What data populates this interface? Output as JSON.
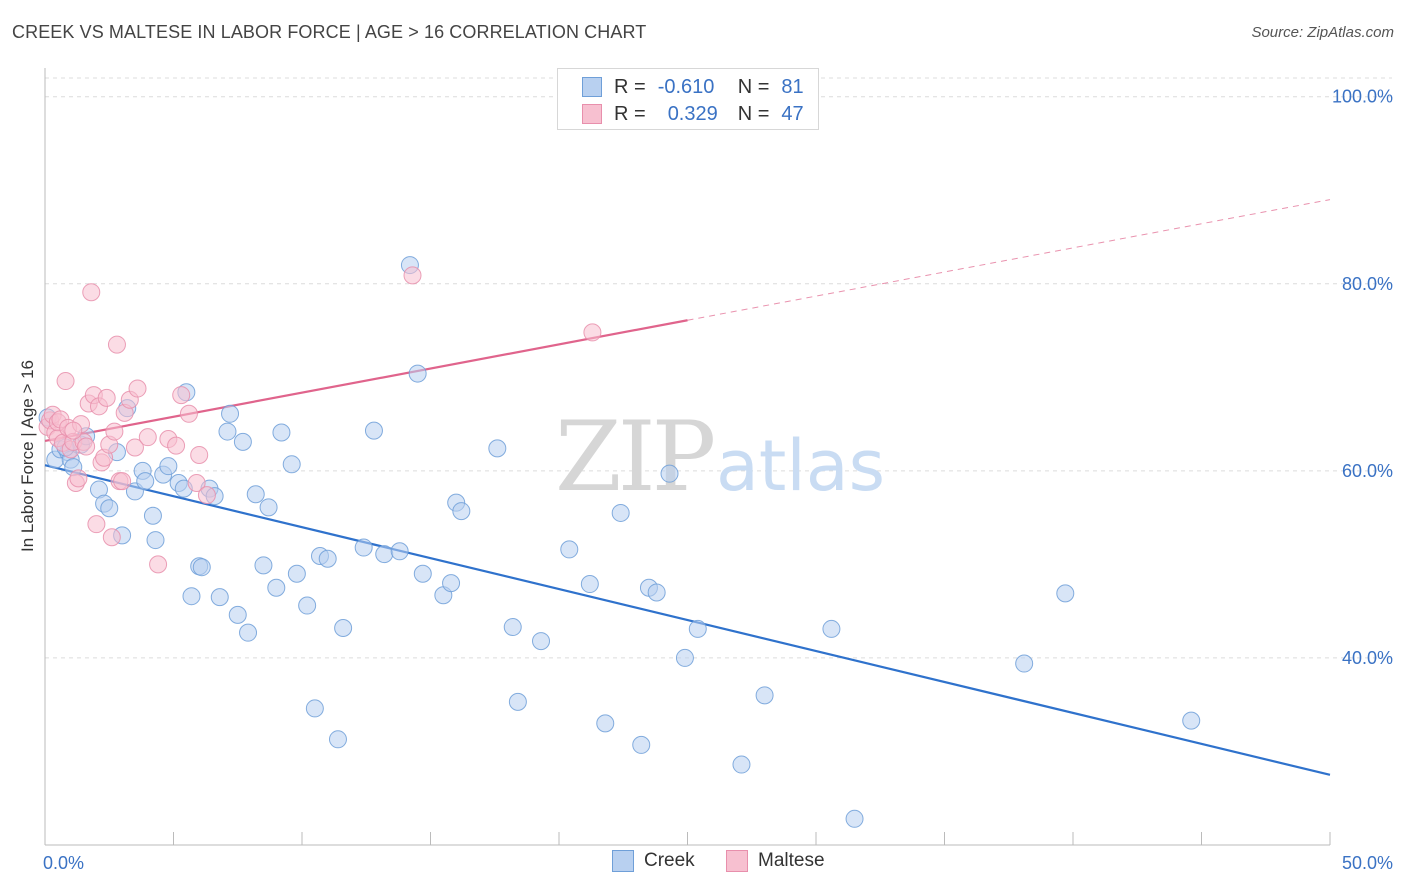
{
  "header": {
    "title": "CREEK VS MALTESE IN LABOR FORCE | AGE > 16 CORRELATION CHART",
    "source": "Source: ZipAtlas.com"
  },
  "legend": {
    "rows": [
      {
        "r_label": "R =",
        "r_value": "-0.610",
        "n_label": "N =",
        "n_value": "81"
      },
      {
        "r_label": "R =",
        "r_value": "0.329",
        "n_label": "N =",
        "n_value": "47"
      }
    ],
    "bottom": [
      {
        "label": "Creek"
      },
      {
        "label": "Maltese"
      }
    ]
  },
  "watermark": {
    "zip": "ZIP",
    "atlas": "atlas"
  },
  "colors": {
    "creek_fill": "#b8d0f0",
    "creek_stroke": "#6f9fd8",
    "creek_line": "#2f72cc",
    "maltese_fill": "#f7c0d0",
    "maltese_stroke": "#e88fac",
    "maltese_line": "#e0648c",
    "tick_label": "#3a72c4",
    "grid": "#dcdcdc"
  },
  "chart_data": {
    "type": "scatter",
    "title": "CREEK VS MALTESE IN LABOR FORCE | AGE > 16 CORRELATION CHART",
    "xlabel": "",
    "ylabel": "In Labor Force | Age > 16",
    "xlim": [
      0,
      50
    ],
    "ylim": [
      20,
      102
    ],
    "x_tick_labels": [
      "0.0%",
      "50.0%"
    ],
    "y_ticks": [
      100,
      80,
      60,
      40
    ],
    "y_tick_labels": [
      "100.0%",
      "80.0%",
      "60.0%",
      "40.0%"
    ],
    "grid": true,
    "legend_position": "top-center",
    "series": [
      {
        "name": "Creek",
        "r": -0.61,
        "n": 81,
        "trend": {
          "x": [
            0,
            50
          ],
          "y": [
            60.6,
            27.5
          ],
          "dashed_from": null
        },
        "points": [
          [
            0.1,
            65.7
          ],
          [
            0.4,
            61.2
          ],
          [
            0.6,
            62.3
          ],
          [
            0.9,
            62.0
          ],
          [
            1.0,
            61.2
          ],
          [
            1.1,
            60.4
          ],
          [
            1.4,
            62.8
          ],
          [
            1.6,
            63.7
          ],
          [
            2.1,
            58.0
          ],
          [
            2.3,
            56.5
          ],
          [
            2.5,
            56.0
          ],
          [
            2.8,
            62.0
          ],
          [
            3.0,
            53.1
          ],
          [
            3.2,
            66.7
          ],
          [
            3.5,
            57.8
          ],
          [
            3.8,
            60.0
          ],
          [
            3.9,
            58.9
          ],
          [
            4.2,
            55.2
          ],
          [
            4.3,
            52.6
          ],
          [
            4.6,
            59.6
          ],
          [
            4.8,
            60.5
          ],
          [
            5.2,
            58.7
          ],
          [
            5.4,
            58.1
          ],
          [
            5.5,
            68.4
          ],
          [
            5.7,
            46.6
          ],
          [
            6.0,
            49.8
          ],
          [
            6.1,
            49.7
          ],
          [
            6.4,
            58.1
          ],
          [
            6.6,
            57.3
          ],
          [
            6.8,
            46.5
          ],
          [
            7.1,
            64.2
          ],
          [
            7.2,
            66.1
          ],
          [
            7.5,
            44.6
          ],
          [
            7.7,
            63.1
          ],
          [
            7.9,
            42.7
          ],
          [
            8.2,
            57.5
          ],
          [
            8.5,
            49.9
          ],
          [
            8.7,
            56.1
          ],
          [
            9.0,
            47.5
          ],
          [
            9.2,
            64.1
          ],
          [
            9.6,
            60.7
          ],
          [
            9.8,
            49.0
          ],
          [
            10.2,
            45.6
          ],
          [
            10.5,
            34.6
          ],
          [
            10.7,
            50.9
          ],
          [
            11.0,
            50.6
          ],
          [
            11.4,
            31.3
          ],
          [
            11.6,
            43.2
          ],
          [
            12.4,
            51.8
          ],
          [
            12.8,
            64.3
          ],
          [
            13.2,
            51.1
          ],
          [
            13.8,
            51.4
          ],
          [
            14.2,
            82.0
          ],
          [
            14.5,
            70.4
          ],
          [
            14.7,
            49.0
          ],
          [
            15.5,
            46.7
          ],
          [
            15.8,
            48.0
          ],
          [
            16.0,
            56.6
          ],
          [
            16.2,
            55.7
          ],
          [
            17.6,
            62.4
          ],
          [
            18.2,
            43.3
          ],
          [
            18.4,
            35.3
          ],
          [
            19.3,
            41.8
          ],
          [
            20.4,
            51.6
          ],
          [
            21.2,
            47.9
          ],
          [
            21.8,
            33.0
          ],
          [
            22.4,
            55.5
          ],
          [
            23.2,
            30.7
          ],
          [
            23.5,
            47.5
          ],
          [
            23.8,
            47.0
          ],
          [
            24.3,
            59.7
          ],
          [
            24.9,
            40.0
          ],
          [
            25.4,
            43.1
          ],
          [
            27.1,
            28.6
          ],
          [
            28.0,
            36.0
          ],
          [
            30.6,
            43.1
          ],
          [
            31.5,
            22.8
          ],
          [
            38.1,
            39.4
          ],
          [
            39.7,
            46.9
          ],
          [
            44.6,
            33.3
          ],
          [
            0.8,
            62.5
          ]
        ]
      },
      {
        "name": "Maltese",
        "r": 0.329,
        "n": 47,
        "trend": {
          "x": [
            0,
            50
          ],
          "y": [
            63.2,
            89.0
          ],
          "dashed_from": 25
        },
        "points": [
          [
            0.1,
            64.7
          ],
          [
            0.2,
            65.4
          ],
          [
            0.3,
            66.0
          ],
          [
            0.4,
            64.1
          ],
          [
            0.5,
            63.5
          ],
          [
            0.5,
            65.2
          ],
          [
            0.6,
            65.5
          ],
          [
            0.7,
            63.0
          ],
          [
            0.8,
            69.6
          ],
          [
            0.9,
            64.6
          ],
          [
            1.0,
            62.3
          ],
          [
            1.1,
            63.1
          ],
          [
            1.2,
            58.7
          ],
          [
            1.3,
            59.2
          ],
          [
            1.4,
            65.0
          ],
          [
            1.5,
            63.1
          ],
          [
            1.6,
            62.6
          ],
          [
            1.7,
            67.2
          ],
          [
            1.8,
            79.1
          ],
          [
            1.9,
            68.1
          ],
          [
            2.0,
            54.3
          ],
          [
            2.1,
            66.9
          ],
          [
            2.2,
            60.9
          ],
          [
            2.3,
            61.4
          ],
          [
            2.4,
            67.8
          ],
          [
            2.5,
            62.8
          ],
          [
            2.6,
            52.9
          ],
          [
            2.7,
            64.2
          ],
          [
            2.8,
            73.5
          ],
          [
            2.9,
            58.9
          ],
          [
            3.0,
            58.9
          ],
          [
            3.1,
            66.2
          ],
          [
            3.3,
            67.6
          ],
          [
            3.5,
            62.5
          ],
          [
            3.6,
            68.8
          ],
          [
            4.0,
            63.6
          ],
          [
            4.4,
            50.0
          ],
          [
            4.8,
            63.4
          ],
          [
            5.3,
            68.1
          ],
          [
            5.6,
            66.1
          ],
          [
            5.9,
            58.7
          ],
          [
            6.0,
            61.7
          ],
          [
            6.3,
            57.4
          ],
          [
            5.1,
            62.7
          ],
          [
            14.3,
            80.9
          ],
          [
            21.3,
            74.8
          ],
          [
            1.1,
            64.3
          ]
        ]
      }
    ]
  }
}
